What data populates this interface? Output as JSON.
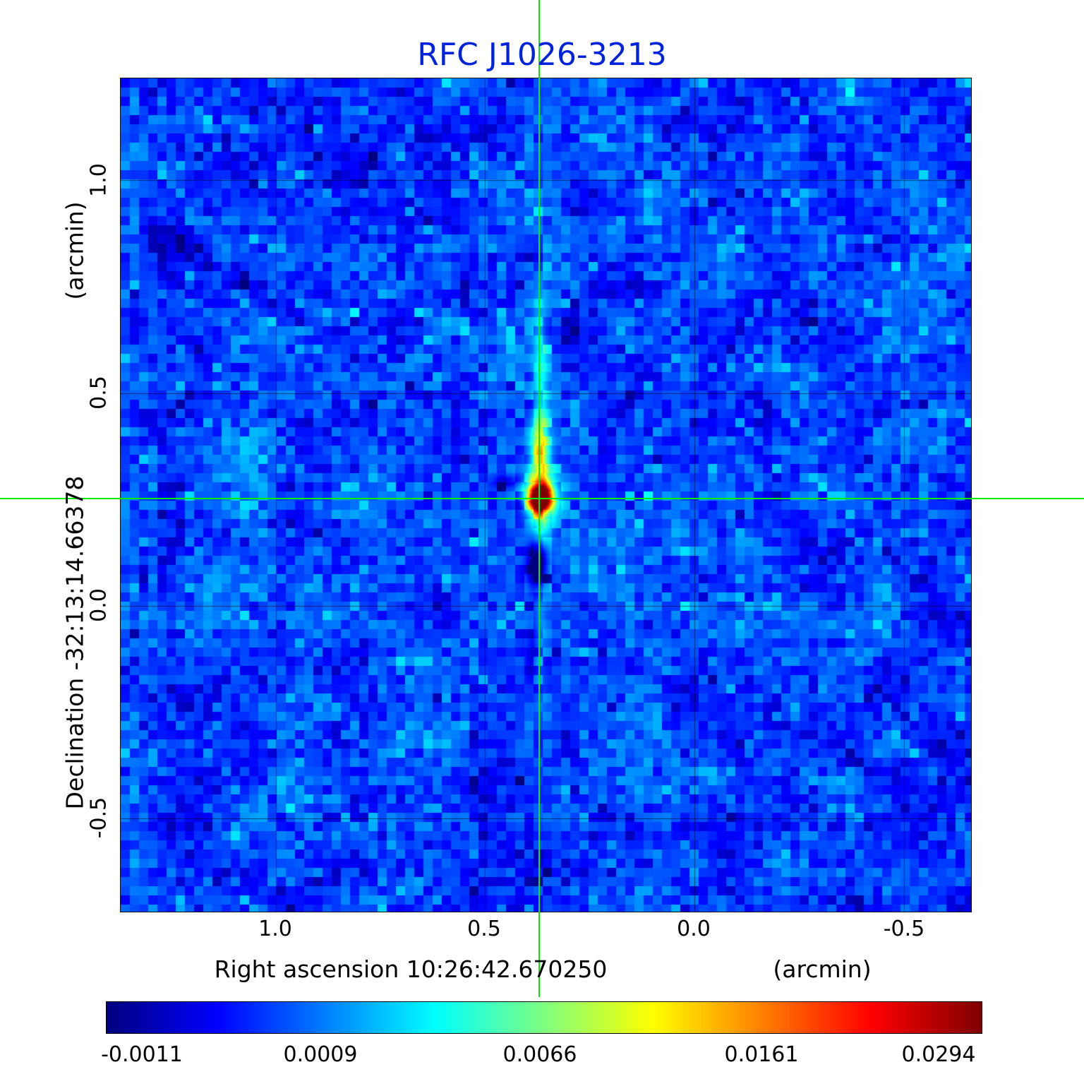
{
  "title": {
    "text": "RFC J1026-3213",
    "color": "#0022dd"
  },
  "y_axis": {
    "unit_label": "(arcmin)",
    "label": "Declination  -32:13:14.66378",
    "ticks": [
      "1.0",
      "0.5",
      "0.0",
      "-0.5"
    ]
  },
  "x_axis": {
    "label": "Right ascension  10:26:42.670250",
    "unit_label": "(arcmin)",
    "ticks": [
      "1.0",
      "0.5",
      "0.0",
      "-0.5"
    ]
  },
  "colorbar": {
    "tick_labels": [
      "-0.0011",
      "0.0009",
      "0.0066",
      "0.0161",
      "0.0294"
    ]
  },
  "chart_data": {
    "type": "heatmap",
    "title": "RFC J1026-3213",
    "xlabel": "Right ascension 10:26:42.670250 (arcmin)",
    "ylabel": "Declination -32:13:14.66378 (arcmin)",
    "x_tick_values": [
      1.0,
      0.5,
      0.0,
      -0.5
    ],
    "y_tick_values": [
      1.0,
      0.5,
      0.0,
      -0.5
    ],
    "xlim": [
      1.37,
      -0.66
    ],
    "ylim": [
      -0.72,
      1.24
    ],
    "x_axis_reversed": true,
    "grid": true,
    "colormap": "jet",
    "colorbar_tick_values": [
      -0.0011,
      0.0009,
      0.0066,
      0.0161,
      0.0294
    ],
    "crosshair": {
      "ra_offset_arcmin": 0.37,
      "dec_offset_arcmin": 0.25,
      "color": "#00ee00"
    },
    "peak_source": {
      "ra_offset_arcmin": 0.37,
      "dec_offset_arcmin": 0.25,
      "peak_value_approx": 0.0294
    },
    "background_noise_rms_approx": 0.0009,
    "features": [
      {
        "name": "central-point-source",
        "ra_offset": 0.37,
        "dec_offset": 0.25,
        "value_approx": 0.029
      },
      {
        "name": "vertical-sidelobe-plume-above-source",
        "value_approx": 0.007
      },
      {
        "name": "negative-sidelobe-below-source",
        "ra_offset": 0.37,
        "dec_offset": 0.1,
        "value_approx": -0.0011
      },
      {
        "name": "faint-diagonal-sidelobe-streak-upper-left",
        "value_approx": -0.0005
      },
      {
        "name": "faint-diagonal-sidelobe-streak-lower-right",
        "value_approx": -0.0005
      }
    ]
  }
}
